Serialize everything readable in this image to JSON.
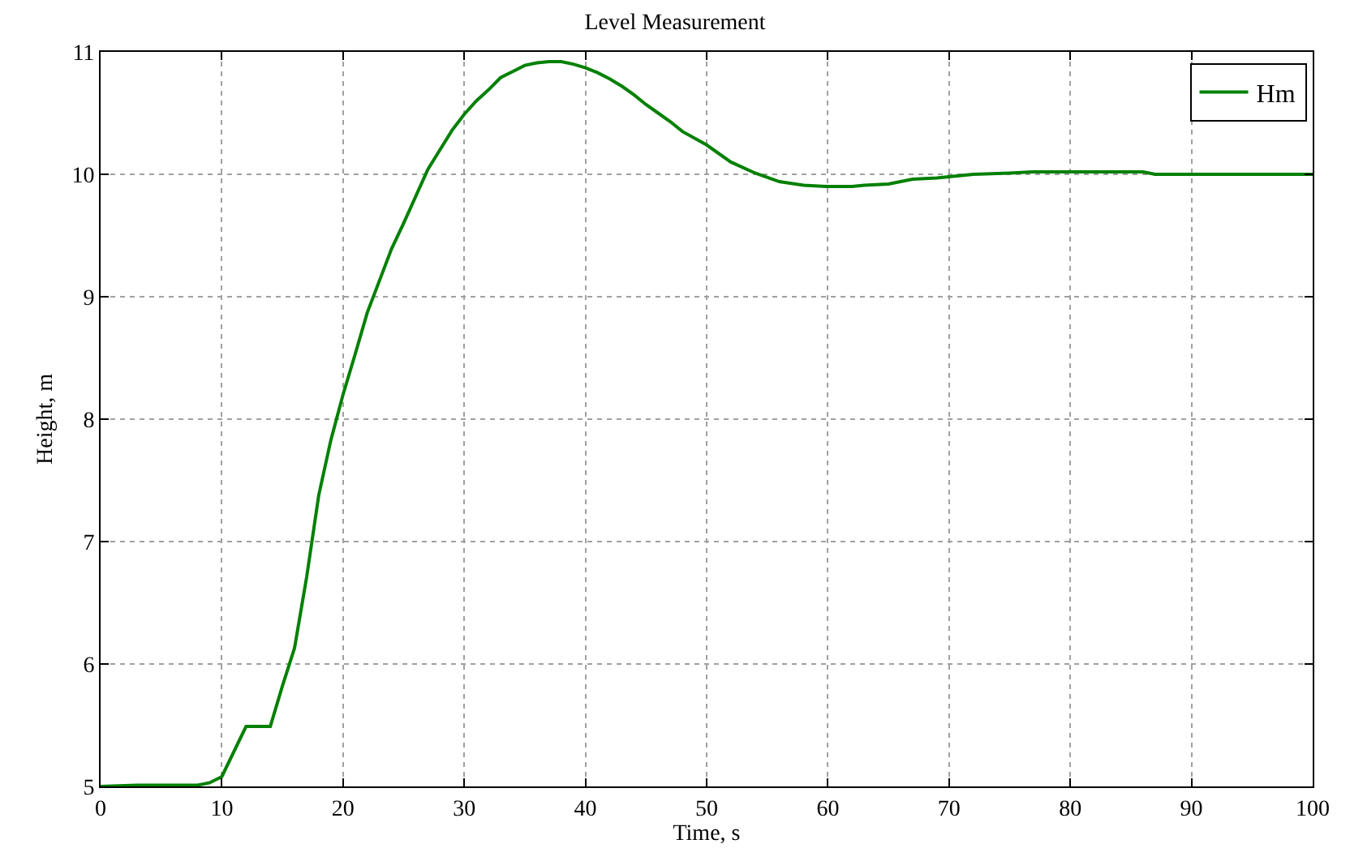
{
  "chart_data": {
    "type": "line",
    "title": "Level Measurement",
    "xlabel": "Time, s",
    "ylabel": "Height, m",
    "x": [
      0,
      3,
      8,
      9,
      10,
      12,
      14,
      15,
      16,
      17,
      18,
      19,
      20,
      21,
      22,
      23,
      24,
      25,
      26,
      27,
      28,
      29,
      30,
      31,
      32,
      33,
      34,
      35,
      36,
      37,
      38,
      39,
      40,
      41,
      42,
      43,
      44,
      45,
      46,
      47,
      48,
      50,
      52,
      54,
      56,
      58,
      60,
      62,
      63,
      65,
      67,
      69,
      71,
      72,
      75,
      77,
      86,
      87,
      100
    ],
    "series": [
      {
        "name": "Hm",
        "color": "#008000",
        "values": [
          5.0,
          5.01,
          5.01,
          5.03,
          5.08,
          5.49,
          5.49,
          5.82,
          6.13,
          6.71,
          7.38,
          7.83,
          8.2,
          8.53,
          8.87,
          9.13,
          9.39,
          9.6,
          9.82,
          10.04,
          10.2,
          10.36,
          10.49,
          10.6,
          10.69,
          10.79,
          10.84,
          10.89,
          10.91,
          10.92,
          10.92,
          10.9,
          10.87,
          10.83,
          10.78,
          10.72,
          10.65,
          10.57,
          10.5,
          10.43,
          10.35,
          10.24,
          10.1,
          10.01,
          9.94,
          9.91,
          9.9,
          9.9,
          9.91,
          9.92,
          9.96,
          9.97,
          9.99,
          10.0,
          10.01,
          10.02,
          10.02,
          10.0,
          10.0
        ]
      }
    ],
    "xlim": [
      0,
      100
    ],
    "xticks": [
      0,
      10,
      20,
      30,
      40,
      50,
      60,
      70,
      80,
      90,
      100
    ],
    "ylim": [
      5,
      11
    ],
    "yticks": [
      5,
      6,
      7,
      8,
      9,
      10,
      11
    ],
    "grid": true,
    "legend": "top right",
    "marker": "none",
    "line_style": "solid"
  }
}
